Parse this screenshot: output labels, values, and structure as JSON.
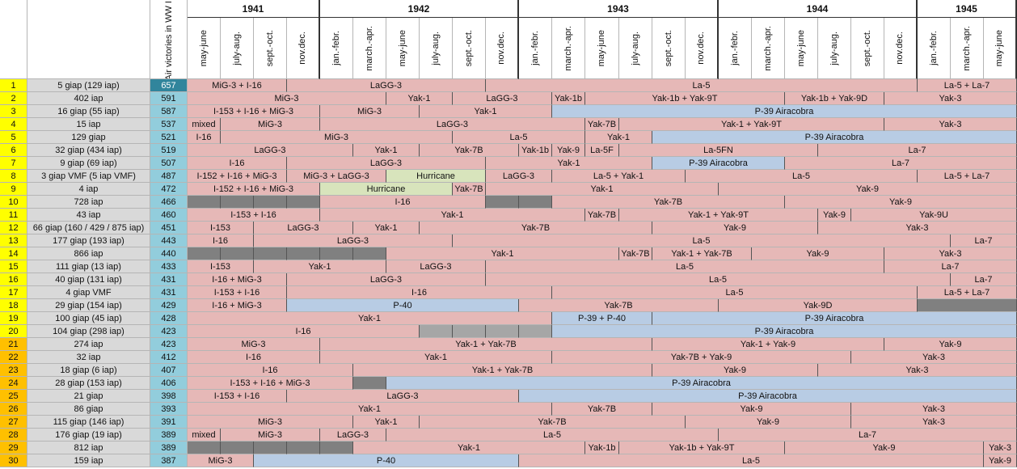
{
  "years": [
    "1941",
    "1942",
    "1943",
    "1944",
    "1945"
  ],
  "victories_header": "Air victories in WW II",
  "periods": [
    "may-june",
    "july-aug.",
    "sept.-oct.",
    "nov.dec.",
    "jan.-febr.",
    "march.-apr.",
    "may-june",
    "july-aug.",
    "sept.-oct.",
    "nov.dec.",
    "jan.-febr.",
    "march.-apr.",
    "may-june",
    "july-aug.",
    "sept.-oct.",
    "nov.dec.",
    "jan.-febr.",
    "march.-apr.",
    "may-june",
    "july-aug.",
    "sept.-oct.",
    "nov.dec.",
    "jan.-febr.",
    "march.-apr.",
    "may-june"
  ],
  "colors": {
    "pink": "#e6b8b7",
    "blue": "#b8cce4",
    "green": "#d8e4bc",
    "gray": "#808080",
    "lgray": "#a6a6a6",
    "yellow": "#ffff00",
    "orange": "#ffc000",
    "unit": "#d9d9d9",
    "victory": "#92cddc"
  },
  "rows": [
    {
      "n": "1",
      "unit": "5 giap (129 iap)",
      "v": "657",
      "segs": [
        [
          1,
          3,
          "MiG-3 + I-16",
          "pink"
        ],
        [
          4,
          9,
          "LaGG-3",
          "pink"
        ],
        [
          10,
          22,
          "La-5",
          "pink"
        ],
        [
          23,
          25,
          "La-5 + La-7",
          "pink"
        ]
      ]
    },
    {
      "n": "2",
      "unit": "402 iap",
      "v": "591",
      "segs": [
        [
          1,
          6,
          "MiG-3",
          "pink"
        ],
        [
          7,
          8,
          "Yak-1",
          "pink"
        ],
        [
          9,
          11,
          "LaGG-3",
          "pink"
        ],
        [
          12,
          12,
          "Yak-1b",
          "pink"
        ],
        [
          13,
          18,
          "Yak-1b + Yak-9T",
          "pink"
        ],
        [
          19,
          21,
          "Yak-1b + Yak-9D",
          "pink"
        ],
        [
          22,
          25,
          "Yak-3",
          "pink"
        ]
      ]
    },
    {
      "n": "3",
      "unit": "16 giap (55 iap)",
      "v": "587",
      "segs": [
        [
          1,
          4,
          "I-153 + I-16 + MiG-3",
          "pink"
        ],
        [
          5,
          7,
          "MiG-3",
          "pink"
        ],
        [
          8,
          11,
          "Yak-1",
          "pink"
        ],
        [
          12,
          25,
          "P-39 Airacobra",
          "blue"
        ]
      ]
    },
    {
      "n": "4",
      "unit": "15 iap",
      "v": "537",
      "segs": [
        [
          1,
          1,
          "mixed",
          "pink"
        ],
        [
          2,
          4,
          "MiG-3",
          "pink"
        ],
        [
          5,
          12,
          "LaGG-3",
          "pink"
        ],
        [
          13,
          13,
          "Yak-7B",
          "pink"
        ],
        [
          14,
          21,
          "Yak-1 + Yak-9T",
          "pink"
        ],
        [
          22,
          25,
          "Yak-3",
          "pink"
        ]
      ]
    },
    {
      "n": "5",
      "unit": "129 giap",
      "v": "521",
      "segs": [
        [
          1,
          1,
          "I-16",
          "pink"
        ],
        [
          2,
          8,
          "MiG-3",
          "pink"
        ],
        [
          9,
          12,
          "La-5",
          "pink"
        ],
        [
          13,
          14,
          "Yak-1",
          "pink"
        ],
        [
          15,
          25,
          "P-39 Airacobra",
          "blue"
        ]
      ]
    },
    {
      "n": "6",
      "unit": "32 giap (434 iap)",
      "v": "519",
      "segs": [
        [
          1,
          5,
          "LaGG-3",
          "pink"
        ],
        [
          6,
          7,
          "Yak-1",
          "pink"
        ],
        [
          8,
          10,
          "Yak-7B",
          "pink"
        ],
        [
          11,
          11,
          "Yak-1b",
          "pink"
        ],
        [
          12,
          12,
          "Yak-9",
          "pink"
        ],
        [
          13,
          13,
          "La-5F",
          "pink"
        ],
        [
          14,
          19,
          "La-5FN",
          "pink"
        ],
        [
          20,
          25,
          "La-7",
          "pink"
        ]
      ]
    },
    {
      "n": "7",
      "unit": "9 giap  (69 iap)",
      "v": "507",
      "segs": [
        [
          1,
          3,
          "I-16",
          "pink"
        ],
        [
          4,
          9,
          "LaGG-3",
          "pink"
        ],
        [
          10,
          14,
          "Yak-1",
          "pink"
        ],
        [
          15,
          18,
          "P-39 Airacobra",
          "blue"
        ],
        [
          19,
          25,
          "La-7",
          "pink"
        ]
      ]
    },
    {
      "n": "8",
      "unit": "3 giap VMF (5 iap VMF)",
      "v": "487",
      "segs": [
        [
          1,
          3,
          "I-152 + I-16 + MiG-3",
          "pink"
        ],
        [
          4,
          6,
          "MiG-3 + LaGG-3",
          "pink"
        ],
        [
          7,
          9,
          "Hurricane",
          "green"
        ],
        [
          10,
          11,
          "LaGG-3",
          "pink"
        ],
        [
          12,
          15,
          "La-5 + Yak-1",
          "pink"
        ],
        [
          16,
          22,
          "La-5",
          "pink"
        ],
        [
          23,
          25,
          "La-5 + La-7",
          "pink"
        ]
      ]
    },
    {
      "n": "9",
      "unit": "4 iap",
      "v": "472",
      "segs": [
        [
          1,
          4,
          "I-152 + I-16 + MiG-3",
          "pink"
        ],
        [
          5,
          8,
          "Hurricane",
          "green"
        ],
        [
          9,
          9,
          "Yak-7B",
          "pink"
        ],
        [
          10,
          16,
          "Yak-1",
          "pink"
        ],
        [
          17,
          25,
          "Yak-9",
          "pink"
        ]
      ]
    },
    {
      "n": "10",
      "unit": "728 iap",
      "v": "466",
      "segs": [
        [
          1,
          1,
          "",
          "gray"
        ],
        [
          2,
          2,
          "",
          "gray"
        ],
        [
          3,
          3,
          "",
          "gray"
        ],
        [
          4,
          4,
          "",
          "gray"
        ],
        [
          5,
          9,
          "I-16",
          "pink"
        ],
        [
          10,
          10,
          "",
          "gray"
        ],
        [
          11,
          11,
          "",
          "gray"
        ],
        [
          12,
          18,
          "Yak-7B",
          "pink"
        ],
        [
          19,
          25,
          "Yak-9",
          "pink"
        ]
      ]
    },
    {
      "n": "11",
      "unit": "43 iap",
      "v": "460",
      "segs": [
        [
          1,
          4,
          "I-153 + I-16",
          "pink"
        ],
        [
          5,
          12,
          "Yak-1",
          "pink"
        ],
        [
          13,
          13,
          "Yak-7B",
          "pink"
        ],
        [
          14,
          19,
          "Yak-1 + Yak-9T",
          "pink"
        ],
        [
          20,
          20,
          "Yak-9",
          "pink"
        ],
        [
          21,
          25,
          "Yak-9U",
          "pink"
        ]
      ]
    },
    {
      "n": "12",
      "unit": "66 giap (160 / 429 / 875 iap)",
      "v": "451",
      "segs": [
        [
          1,
          2,
          "I-153",
          "pink"
        ],
        [
          3,
          5,
          "LaGG-3",
          "pink"
        ],
        [
          6,
          7,
          "Yak-1",
          "pink"
        ],
        [
          8,
          14,
          "Yak-7B",
          "pink"
        ],
        [
          15,
          19,
          "Yak-9",
          "pink"
        ],
        [
          20,
          25,
          "Yak-3",
          "pink"
        ]
      ]
    },
    {
      "n": "13",
      "unit": "177 giap (193 iap)",
      "v": "443",
      "segs": [
        [
          1,
          2,
          "I-16",
          "pink"
        ],
        [
          3,
          8,
          "LaGG-3",
          "pink"
        ],
        [
          9,
          23,
          "La-5",
          "pink"
        ],
        [
          24,
          25,
          "La-7",
          "pink"
        ]
      ]
    },
    {
      "n": "14",
      "unit": "866 iap",
      "v": "440",
      "segs": [
        [
          1,
          1,
          "",
          "gray"
        ],
        [
          2,
          2,
          "",
          "gray"
        ],
        [
          3,
          3,
          "",
          "gray"
        ],
        [
          4,
          4,
          "",
          "gray"
        ],
        [
          5,
          5,
          "",
          "gray"
        ],
        [
          6,
          6,
          "",
          "gray"
        ],
        [
          7,
          13,
          "Yak-1",
          "pink"
        ],
        [
          14,
          14,
          "Yak-7B",
          "pink"
        ],
        [
          15,
          17,
          "Yak-1 + Yak-7B",
          "pink"
        ],
        [
          18,
          21,
          "Yak-9",
          "pink"
        ],
        [
          22,
          25,
          "Yak-3",
          "pink"
        ]
      ]
    },
    {
      "n": "15",
      "unit": "111 giap (13 iap)",
      "v": "433",
      "segs": [
        [
          1,
          2,
          "I-153",
          "pink"
        ],
        [
          3,
          6,
          "Yak-1",
          "pink"
        ],
        [
          7,
          9,
          "LaGG-3",
          "pink"
        ],
        [
          10,
          21,
          "La-5",
          "pink"
        ],
        [
          22,
          25,
          "La-7",
          "pink"
        ]
      ]
    },
    {
      "n": "16",
      "unit": "40 giap (131 iap)",
      "v": "431",
      "segs": [
        [
          1,
          3,
          "I-16 + MiG-3",
          "pink"
        ],
        [
          4,
          9,
          "LaGG-3",
          "pink"
        ],
        [
          10,
          23,
          "La-5",
          "pink"
        ],
        [
          24,
          25,
          "La-7",
          "pink"
        ]
      ]
    },
    {
      "n": "17",
      "unit": "4 giap VMF",
      "v": "431",
      "segs": [
        [
          1,
          3,
          "I-153 + I-16",
          "pink"
        ],
        [
          4,
          11,
          "I-16",
          "pink"
        ],
        [
          12,
          22,
          "La-5",
          "pink"
        ],
        [
          23,
          25,
          "La-5 + La-7",
          "pink"
        ]
      ]
    },
    {
      "n": "18",
      "unit": "29 giap (154 iap)",
      "v": "429",
      "segs": [
        [
          1,
          3,
          "I-16 + MiG-3",
          "pink"
        ],
        [
          4,
          10,
          "P-40",
          "blue"
        ],
        [
          11,
          16,
          "Yak-7B",
          "pink"
        ],
        [
          17,
          22,
          "Yak-9D",
          "pink"
        ],
        [
          23,
          25,
          "",
          "gray"
        ]
      ]
    },
    {
      "n": "19",
      "unit": "100 giap (45 iap)",
      "v": "428",
      "segs": [
        [
          1,
          11,
          "Yak-1",
          "pink"
        ],
        [
          12,
          14,
          "P-39 + P-40",
          "blue"
        ],
        [
          15,
          25,
          "P-39 Airacobra",
          "blue"
        ]
      ]
    },
    {
      "n": "20",
      "unit": "104 giap (298 iap)",
      "v": "423",
      "segs": [
        [
          1,
          7,
          "I-16",
          "pink"
        ],
        [
          8,
          8,
          "",
          "lgray"
        ],
        [
          9,
          9,
          "",
          "lgray"
        ],
        [
          10,
          10,
          "",
          "lgray"
        ],
        [
          11,
          11,
          "",
          "lgray"
        ],
        [
          12,
          25,
          "P-39 Airacobra",
          "blue"
        ]
      ]
    },
    {
      "n": "21",
      "unit": "274 iap",
      "v": "423",
      "segs": [
        [
          1,
          4,
          "MiG-3",
          "pink"
        ],
        [
          5,
          14,
          "Yak-1 + Yak-7B",
          "pink"
        ],
        [
          15,
          21,
          "Yak-1 + Yak-9",
          "pink"
        ],
        [
          22,
          25,
          "Yak-9",
          "pink"
        ]
      ]
    },
    {
      "n": "22",
      "unit": "32 iap",
      "v": "412",
      "segs": [
        [
          1,
          4,
          "I-16",
          "pink"
        ],
        [
          5,
          11,
          "Yak-1",
          "pink"
        ],
        [
          12,
          20,
          "Yak-7B + Yak-9",
          "pink"
        ],
        [
          21,
          25,
          "Yak-3",
          "pink"
        ]
      ]
    },
    {
      "n": "23",
      "unit": "18 giap (6 iap)",
      "v": "407",
      "segs": [
        [
          1,
          5,
          "I-16",
          "pink"
        ],
        [
          6,
          14,
          "Yak-1 + Yak-7B",
          "pink"
        ],
        [
          15,
          19,
          "Yak-9",
          "pink"
        ],
        [
          20,
          25,
          "Yak-3",
          "pink"
        ]
      ]
    },
    {
      "n": "24",
      "unit": "28 giap (153 iap)",
      "v": "406",
      "segs": [
        [
          1,
          5,
          "I-153 + I-16 + MiG-3",
          "pink"
        ],
        [
          6,
          6,
          "",
          "gray"
        ],
        [
          7,
          25,
          "P-39 Airacobra",
          "blue"
        ]
      ]
    },
    {
      "n": "25",
      "unit": "21 giap",
      "v": "398",
      "segs": [
        [
          1,
          3,
          "I-153 + I-16",
          "pink"
        ],
        [
          4,
          10,
          "LaGG-3",
          "pink"
        ],
        [
          11,
          25,
          "P-39 Airacobra",
          "blue"
        ]
      ]
    },
    {
      "n": "26",
      "unit": "86 giap",
      "v": "393",
      "segs": [
        [
          1,
          11,
          "Yak-1",
          "pink"
        ],
        [
          12,
          14,
          "Yak-7B",
          "pink"
        ],
        [
          15,
          20,
          "Yak-9",
          "pink"
        ],
        [
          21,
          25,
          "Yak-3",
          "pink"
        ]
      ]
    },
    {
      "n": "27",
      "unit": "115 giap (146 iap)",
      "v": "391",
      "segs": [
        [
          1,
          5,
          "MiG-3",
          "pink"
        ],
        [
          6,
          7,
          "Yak-1",
          "pink"
        ],
        [
          8,
          15,
          "Yak-7B",
          "pink"
        ],
        [
          16,
          20,
          "Yak-9",
          "pink"
        ],
        [
          21,
          25,
          "Yak-3",
          "pink"
        ]
      ]
    },
    {
      "n": "28",
      "unit": "176 giap (19 iap)",
      "v": "389",
      "segs": [
        [
          1,
          1,
          "mixed",
          "pink"
        ],
        [
          2,
          4,
          "MiG-3",
          "pink"
        ],
        [
          5,
          6,
          "LaGG-3",
          "pink"
        ],
        [
          7,
          16,
          "La-5",
          "pink"
        ],
        [
          17,
          25,
          "La-7",
          "pink"
        ]
      ]
    },
    {
      "n": "29",
      "unit": "812 iap",
      "v": "389",
      "segs": [
        [
          1,
          1,
          "",
          "gray"
        ],
        [
          2,
          2,
          "",
          "gray"
        ],
        [
          3,
          3,
          "",
          "gray"
        ],
        [
          4,
          4,
          "",
          "gray"
        ],
        [
          5,
          5,
          "",
          "gray"
        ],
        [
          6,
          12,
          "Yak-1",
          "pink"
        ],
        [
          13,
          13,
          "Yak-1b",
          "pink"
        ],
        [
          14,
          18,
          "Yak-1b + Yak-9T",
          "pink"
        ],
        [
          19,
          24,
          "Yak-9",
          "pink"
        ],
        [
          25,
          25,
          "Yak-3",
          "pink"
        ]
      ]
    },
    {
      "n": "30",
      "unit": "159 iap",
      "v": "387",
      "segs": [
        [
          1,
          2,
          "MiG-3",
          "pink"
        ],
        [
          3,
          10,
          "P-40",
          "blue"
        ],
        [
          11,
          24,
          "La-5",
          "pink"
        ],
        [
          25,
          25,
          "Yak-9",
          "pink"
        ]
      ]
    }
  ]
}
